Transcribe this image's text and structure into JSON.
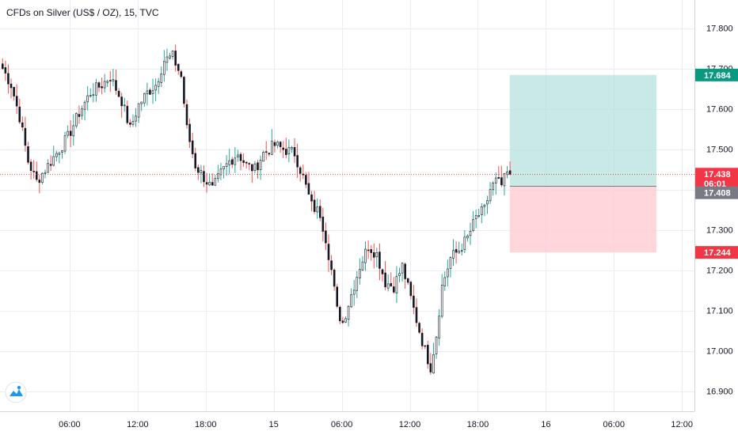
{
  "title": "CFDs on Silver (US$ / OZ), 15, TVC",
  "colors": {
    "up": "#26a69a",
    "down": "#ef5350",
    "candle_body_up": "#ffffff",
    "wick": "#333333",
    "grid": "#e9ecf2",
    "profit_zone": "#b2dfdb",
    "loss_zone": "#ffcdd2",
    "current_line": "#ef5350",
    "badge_gray": "#787b86",
    "badge_green": "#089981",
    "badge_red": "#f23645",
    "logo": "#2196f3"
  },
  "chart_data": {
    "type": "candlestick",
    "ylim": [
      16.85,
      17.87
    ],
    "y_ticks": [
      "17.800",
      "17.700",
      "17.600",
      "17.500",
      "17.400",
      "17.300",
      "17.200",
      "17.100",
      "17.000",
      "16.900"
    ],
    "y_tick_values": [
      17.8,
      17.7,
      17.6,
      17.5,
      17.4,
      17.3,
      17.2,
      17.1,
      17.0,
      16.9
    ],
    "x_labels": [
      "06:00",
      "12:00",
      "18:00",
      "15",
      "06:00",
      "12:00",
      "18:00",
      "16",
      "06:00",
      "12:00"
    ],
    "x_label_bar_index": [
      24,
      48,
      72,
      96,
      120,
      144,
      168,
      192,
      216,
      240
    ],
    "bars_visible": 180,
    "close_path": [
      [
        0,
        17.7
      ],
      [
        3,
        17.66
      ],
      [
        6,
        17.58
      ],
      [
        9,
        17.47
      ],
      [
        12,
        17.42
      ],
      [
        15,
        17.45
      ],
      [
        19,
        17.49
      ],
      [
        23,
        17.53
      ],
      [
        27,
        17.59
      ],
      [
        31,
        17.64
      ],
      [
        35,
        17.66
      ],
      [
        38,
        17.68
      ],
      [
        42,
        17.62
      ],
      [
        45,
        17.55
      ],
      [
        48,
        17.61
      ],
      [
        51,
        17.64
      ],
      [
        54,
        17.66
      ],
      [
        57,
        17.72
      ],
      [
        60,
        17.73
      ],
      [
        63,
        17.68
      ],
      [
        65,
        17.55
      ],
      [
        68,
        17.46
      ],
      [
        71,
        17.43
      ],
      [
        74,
        17.4
      ],
      [
        77,
        17.44
      ],
      [
        80,
        17.47
      ],
      [
        83,
        17.49
      ],
      [
        86,
        17.46
      ],
      [
        89,
        17.45
      ],
      [
        92,
        17.49
      ],
      [
        96,
        17.51
      ],
      [
        99,
        17.5
      ],
      [
        103,
        17.49
      ],
      [
        106,
        17.43
      ],
      [
        109,
        17.36
      ],
      [
        112,
        17.34
      ],
      [
        114,
        17.28
      ],
      [
        116,
        17.2
      ],
      [
        118,
        17.1
      ],
      [
        120,
        17.07
      ],
      [
        123,
        17.14
      ],
      [
        126,
        17.21
      ],
      [
        129,
        17.26
      ],
      [
        132,
        17.24
      ],
      [
        135,
        17.17
      ],
      [
        138,
        17.16
      ],
      [
        141,
        17.21
      ],
      [
        144,
        17.13
      ],
      [
        147,
        17.05
      ],
      [
        149,
        17.0
      ],
      [
        151,
        16.96
      ],
      [
        153,
        17.04
      ],
      [
        155,
        17.16
      ],
      [
        158,
        17.23
      ],
      [
        161,
        17.25
      ],
      [
        164,
        17.28
      ],
      [
        167,
        17.33
      ],
      [
        170,
        17.35
      ],
      [
        172,
        17.4
      ],
      [
        174,
        17.42
      ],
      [
        176,
        17.41
      ],
      [
        178,
        17.44
      ],
      [
        179,
        17.438
      ]
    ],
    "seed": 7,
    "current_price": 17.438,
    "position": {
      "type": "long",
      "target": 17.684,
      "entry": 17.408,
      "stop": 17.244,
      "start_bar": 179,
      "end_bar": 231
    },
    "price_badges": [
      {
        "label": "17.684",
        "value": 17.684,
        "color": "badge_green"
      },
      {
        "label": "17.438",
        "value": 17.438,
        "color": "badge_red"
      },
      {
        "label": "06:01",
        "value": 17.415,
        "color": "badge_red"
      },
      {
        "label": "17.408",
        "value": 17.392,
        "color": "badge_gray"
      },
      {
        "label": "17.244",
        "value": 17.244,
        "color": "badge_red"
      }
    ]
  }
}
